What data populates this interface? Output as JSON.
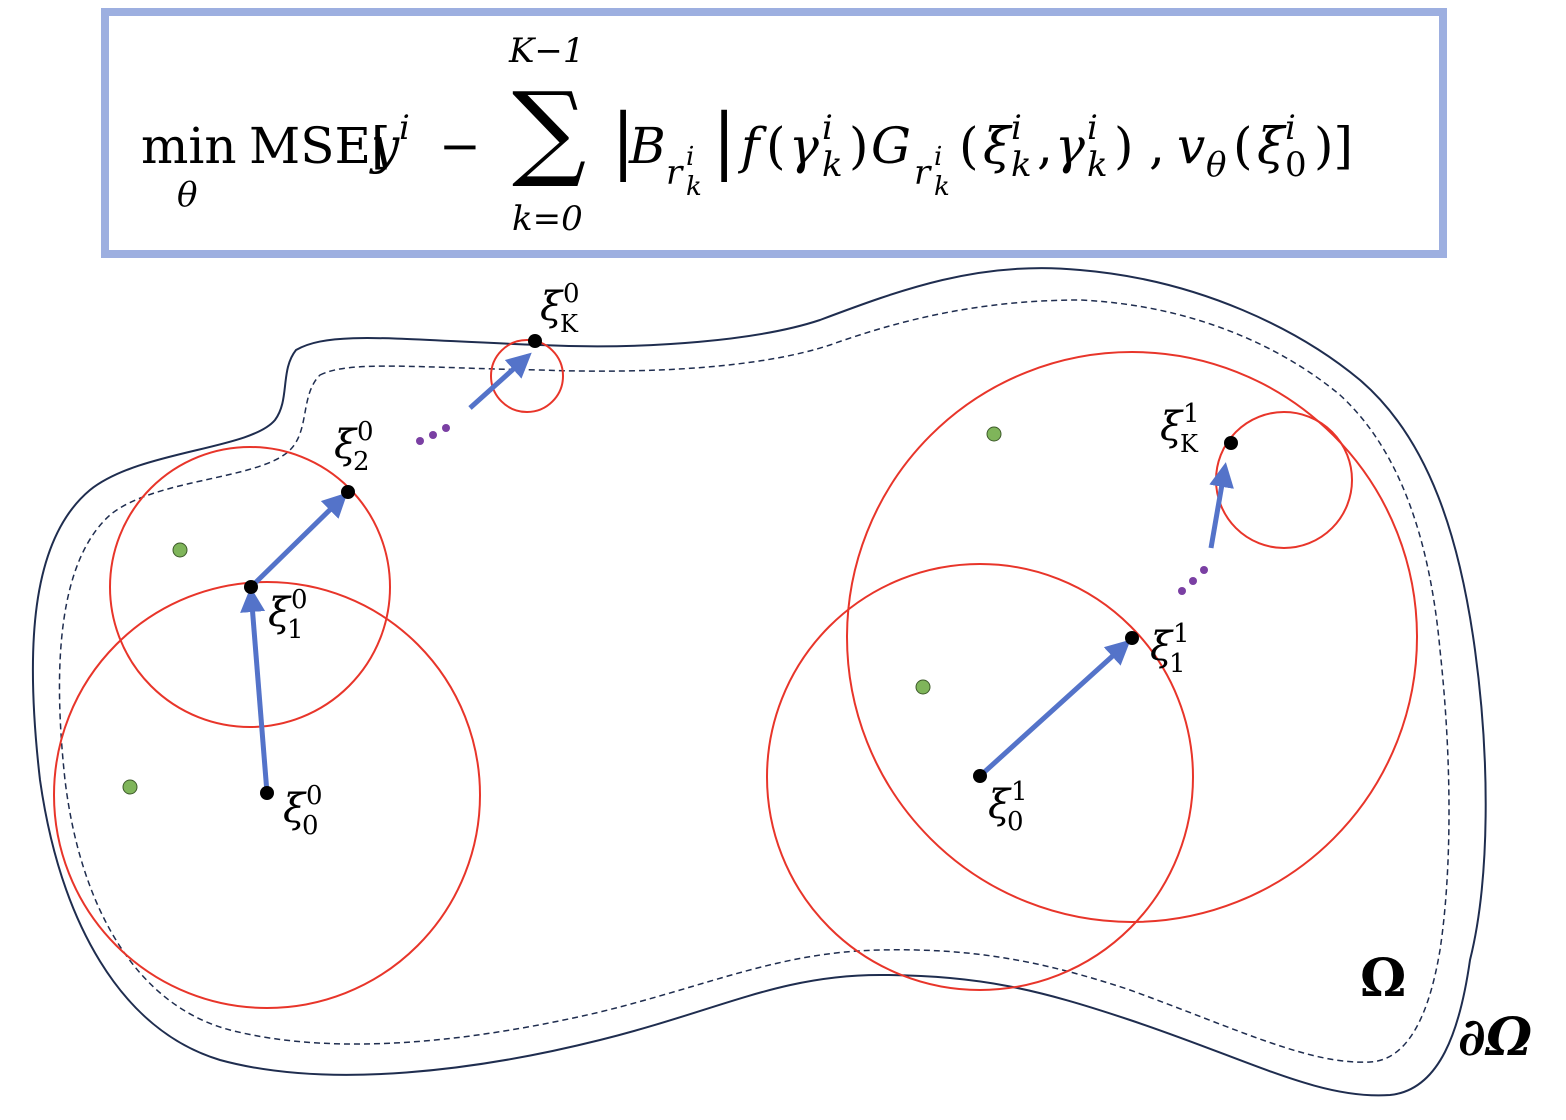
{
  "formula": {
    "min_op": "min",
    "min_sub": "θ",
    "mse": "MSE[",
    "y": "y",
    "y_sup": "i",
    "minus": "−",
    "sum": "∑",
    "sum_upper": "K−1",
    "sum_lower": "k=0",
    "abs_open": "|",
    "B": "B",
    "r": "r",
    "r_sup": "i",
    "r_sub": "k",
    "abs_close": "|",
    "f": "f",
    "paren_open": "(",
    "gamma": "γ",
    "gamma_sup": "i",
    "gamma_sub": "k",
    "paren_close": ")",
    "G": "G",
    "xi": "ξ",
    "comma": ",",
    "v": "v",
    "v_sub": "θ",
    "bracket_close": ")]",
    "zero": "0"
  },
  "labels": {
    "xi0_0": {
      "base": "ξ",
      "sup": "0",
      "sub": "0"
    },
    "xi1_0": {
      "base": "ξ",
      "sup": "0",
      "sub": "1"
    },
    "xi2_0": {
      "base": "ξ",
      "sup": "0",
      "sub": "2"
    },
    "xiK_0": {
      "base": "ξ",
      "sup": "0",
      "sub": "K"
    },
    "xi0_1": {
      "base": "ξ",
      "sup": "1",
      "sub": "0"
    },
    "xi1_1": {
      "base": "ξ",
      "sup": "1",
      "sub": "1"
    },
    "xiK_1": {
      "base": "ξ",
      "sup": "1",
      "sub": "K"
    },
    "omega": "Ω",
    "boundary": "∂Ω"
  },
  "colors": {
    "box_border": "#9dafe0",
    "domain_outline": "#1f2d4f",
    "circle": "#e8352a",
    "arrow": "#5473c9",
    "ellipsis_dots": "#7a3fa3",
    "sample_point": "#7fb55a",
    "walk_point": "#000000"
  }
}
